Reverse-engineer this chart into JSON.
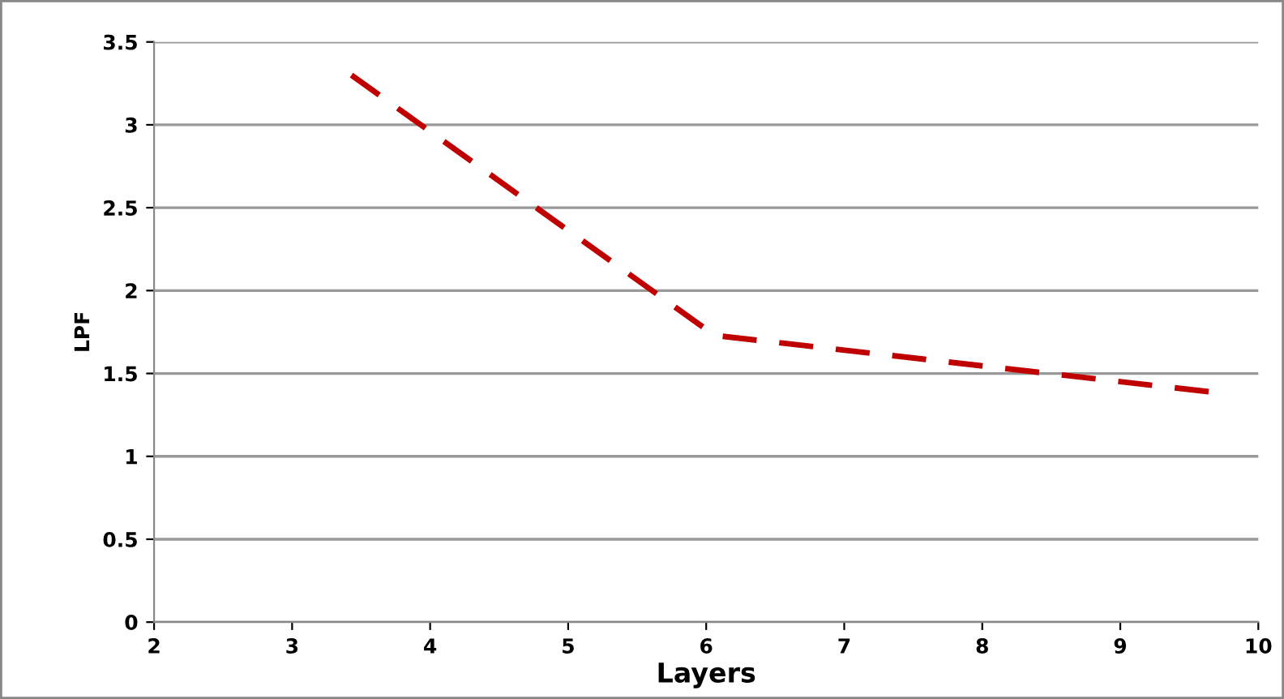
{
  "chart_data": {
    "type": "line",
    "xlabel": "Layers",
    "ylabel": "LPF",
    "x": [
      3.43,
      6.06,
      9.64
    ],
    "series": [
      {
        "color": "#c00000",
        "values": [
          3.3,
          1.73,
          1.39
        ]
      }
    ],
    "xlim": [
      2,
      10
    ],
    "xticks": [
      2,
      3,
      4,
      5,
      6,
      7,
      8,
      9,
      10
    ],
    "ylim": [
      0,
      3.5
    ],
    "yticks": [
      0,
      0.5,
      1,
      1.5,
      2,
      2.5,
      3,
      3.5
    ],
    "grid": "y",
    "line_style": "dashed",
    "marker": "none"
  }
}
